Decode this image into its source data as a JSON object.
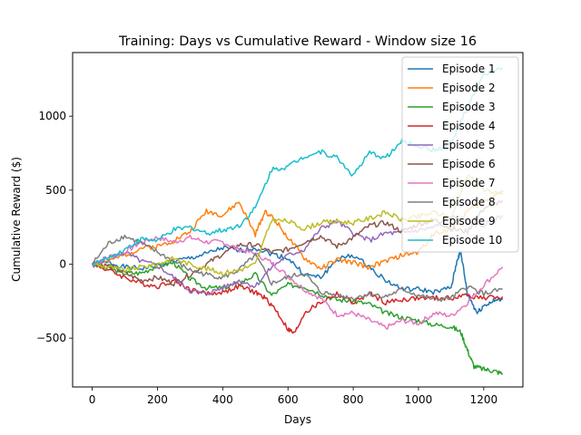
{
  "chart_data": {
    "type": "line",
    "title": "Training: Days vs Cumulative Reward - Window size 16",
    "xlabel": "Days",
    "ylabel": "Cumulative Reward ($)",
    "xlim": [
      -60,
      1320
    ],
    "ylim": [
      -830,
      1430
    ],
    "xticks": [
      0,
      200,
      400,
      600,
      800,
      1000,
      1200
    ],
    "yticks": [
      -500,
      0,
      500,
      1000
    ],
    "ytick_labels": [
      "−500",
      "0",
      "500",
      "1000"
    ],
    "grid": false,
    "legend_position": "top-right",
    "series": [
      {
        "name": "Episode 1",
        "color": "#1f77b4",
        "x": [
          0,
          50,
          100,
          150,
          200,
          250,
          300,
          350,
          400,
          450,
          500,
          550,
          600,
          650,
          700,
          750,
          800,
          850,
          900,
          950,
          1000,
          1050,
          1100,
          1120,
          1130,
          1150,
          1180,
          1200,
          1230,
          1258
        ],
        "y": [
          0,
          10,
          -20,
          -30,
          -10,
          20,
          40,
          70,
          110,
          90,
          110,
          70,
          40,
          -70,
          -90,
          30,
          60,
          -20,
          -110,
          -170,
          -170,
          -190,
          -160,
          40,
          80,
          -200,
          -330,
          -280,
          -250,
          -240
        ]
      },
      {
        "name": "Episode 2",
        "color": "#ff7f0e",
        "x": [
          0,
          50,
          100,
          150,
          200,
          250,
          300,
          350,
          400,
          450,
          500,
          530,
          560,
          600,
          650,
          700,
          750,
          800,
          850,
          900,
          950,
          1000,
          1050,
          1100,
          1150,
          1200,
          1258
        ],
        "y": [
          0,
          20,
          60,
          110,
          120,
          160,
          220,
          360,
          330,
          420,
          200,
          360,
          300,
          180,
          40,
          -30,
          30,
          10,
          -20,
          20,
          60,
          80,
          210,
          240,
          360,
          420,
          500
        ]
      },
      {
        "name": "Episode 3",
        "color": "#2ca02c",
        "x": [
          0,
          50,
          100,
          150,
          200,
          250,
          300,
          350,
          400,
          450,
          500,
          550,
          600,
          650,
          700,
          750,
          800,
          850,
          900,
          950,
          1000,
          1050,
          1100,
          1130,
          1150,
          1170,
          1200,
          1230,
          1258
        ],
        "y": [
          0,
          -30,
          -60,
          -60,
          -10,
          10,
          -100,
          -160,
          -160,
          -130,
          -70,
          -210,
          -140,
          -150,
          -200,
          -240,
          -250,
          -270,
          -330,
          -360,
          -380,
          -410,
          -420,
          -460,
          -580,
          -690,
          -710,
          -720,
          -740
        ]
      },
      {
        "name": "Episode 4",
        "color": "#d62728",
        "x": [
          0,
          50,
          100,
          150,
          200,
          250,
          300,
          350,
          400,
          450,
          500,
          530,
          560,
          600,
          620,
          650,
          700,
          750,
          800,
          850,
          900,
          950,
          1000,
          1050,
          1100,
          1150,
          1200,
          1258
        ],
        "y": [
          0,
          -40,
          -90,
          -130,
          -150,
          -110,
          -170,
          -200,
          -190,
          -150,
          -190,
          -230,
          -300,
          -440,
          -470,
          -330,
          -260,
          -200,
          -260,
          -200,
          -260,
          -240,
          -230,
          -230,
          -230,
          -210,
          -230,
          -220
        ]
      },
      {
        "name": "Episode 5",
        "color": "#9467bd",
        "x": [
          0,
          50,
          100,
          150,
          200,
          250,
          300,
          350,
          400,
          450,
          500,
          550,
          600,
          650,
          700,
          750,
          800,
          850,
          900,
          950,
          1000,
          1050,
          1100,
          1150,
          1200,
          1258
        ],
        "y": [
          0,
          40,
          80,
          20,
          -10,
          -90,
          -180,
          -200,
          -160,
          -110,
          -150,
          -20,
          60,
          100,
          240,
          290,
          210,
          160,
          210,
          210,
          230,
          250,
          320,
          280,
          260,
          330
        ]
      },
      {
        "name": "Episode 6",
        "color": "#8c564b",
        "x": [
          0,
          50,
          100,
          150,
          200,
          250,
          300,
          350,
          400,
          450,
          500,
          550,
          600,
          650,
          700,
          750,
          800,
          850,
          900,
          950,
          1000,
          1050,
          1100,
          1150,
          1200,
          1258
        ],
        "y": [
          0,
          -10,
          -60,
          -110,
          -90,
          -130,
          -70,
          0,
          70,
          130,
          130,
          80,
          100,
          150,
          190,
          120,
          180,
          260,
          280,
          220,
          270,
          300,
          240,
          220,
          380,
          430
        ]
      },
      {
        "name": "Episode 7",
        "color": "#e377c2",
        "x": [
          0,
          50,
          100,
          150,
          200,
          250,
          300,
          350,
          400,
          450,
          500,
          550,
          600,
          650,
          700,
          750,
          800,
          850,
          900,
          950,
          1000,
          1050,
          1100,
          1150,
          1200,
          1258
        ],
        "y": [
          0,
          50,
          80,
          150,
          180,
          150,
          180,
          150,
          150,
          100,
          70,
          10,
          -80,
          -170,
          -230,
          -340,
          -330,
          -380,
          -430,
          -380,
          -400,
          -330,
          -350,
          -260,
          -140,
          -20
        ]
      },
      {
        "name": "Episode 8",
        "color": "#7f7f7f",
        "x": [
          0,
          50,
          100,
          150,
          200,
          250,
          300,
          350,
          400,
          450,
          500,
          550,
          600,
          650,
          700,
          750,
          800,
          850,
          900,
          950,
          1000,
          1050,
          1100,
          1150,
          1200,
          1258
        ],
        "y": [
          0,
          140,
          190,
          140,
          80,
          20,
          -40,
          -70,
          -90,
          -40,
          60,
          -130,
          -90,
          -60,
          -190,
          -210,
          -230,
          -200,
          -220,
          -170,
          -210,
          -240,
          -230,
          -150,
          -200,
          -170
        ]
      },
      {
        "name": "Episode 9",
        "color": "#bcbd22",
        "x": [
          0,
          50,
          100,
          150,
          200,
          250,
          300,
          350,
          400,
          450,
          500,
          550,
          600,
          650,
          700,
          750,
          800,
          850,
          900,
          950,
          1000,
          1050,
          1100,
          1150,
          1200,
          1258
        ],
        "y": [
          0,
          -20,
          -40,
          -20,
          0,
          40,
          0,
          -30,
          -60,
          -40,
          0,
          300,
          290,
          240,
          280,
          290,
          280,
          310,
          350,
          300,
          320,
          350,
          310,
          610,
          510,
          470
        ]
      },
      {
        "name": "Episode 10",
        "color": "#17becf",
        "x": [
          0,
          50,
          100,
          150,
          200,
          250,
          300,
          350,
          400,
          450,
          500,
          550,
          600,
          650,
          700,
          750,
          800,
          850,
          900,
          950,
          1000,
          1050,
          1100,
          1150,
          1200,
          1258
        ],
        "y": [
          0,
          40,
          100,
          170,
          160,
          230,
          250,
          210,
          230,
          260,
          380,
          640,
          660,
          730,
          760,
          720,
          600,
          750,
          720,
          830,
          800,
          770,
          810,
          1060,
          1280,
          1330
        ]
      }
    ]
  }
}
